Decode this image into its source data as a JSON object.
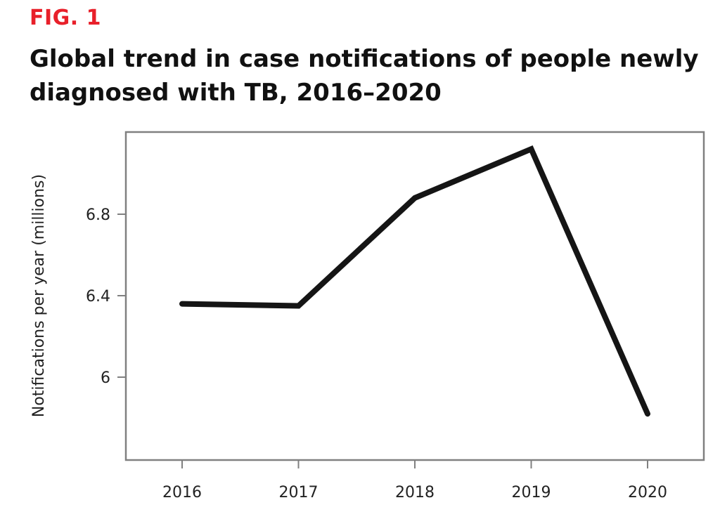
{
  "figure": {
    "label": "FIG. 1",
    "label_color": "#e8202a"
  },
  "chart_data": {
    "type": "line",
    "title": "Global trend in case notifications of people newly diagnosed with TB, 2016–2020",
    "xlabel": "",
    "ylabel": "Notifications per year (millions)",
    "categories": [
      "2016",
      "2017",
      "2018",
      "2019",
      "2020"
    ],
    "series": [
      {
        "values": [
          6.36,
          6.35,
          6.88,
          7.12,
          5.82
        ],
        "color": "#151515"
      }
    ],
    "yticks": [
      6,
      6.4,
      6.8
    ],
    "ytick_labels": [
      "6",
      "6.4",
      "6.8"
    ],
    "ylim": [
      5.6,
      7.2
    ],
    "grid": false,
    "legend": "none"
  }
}
